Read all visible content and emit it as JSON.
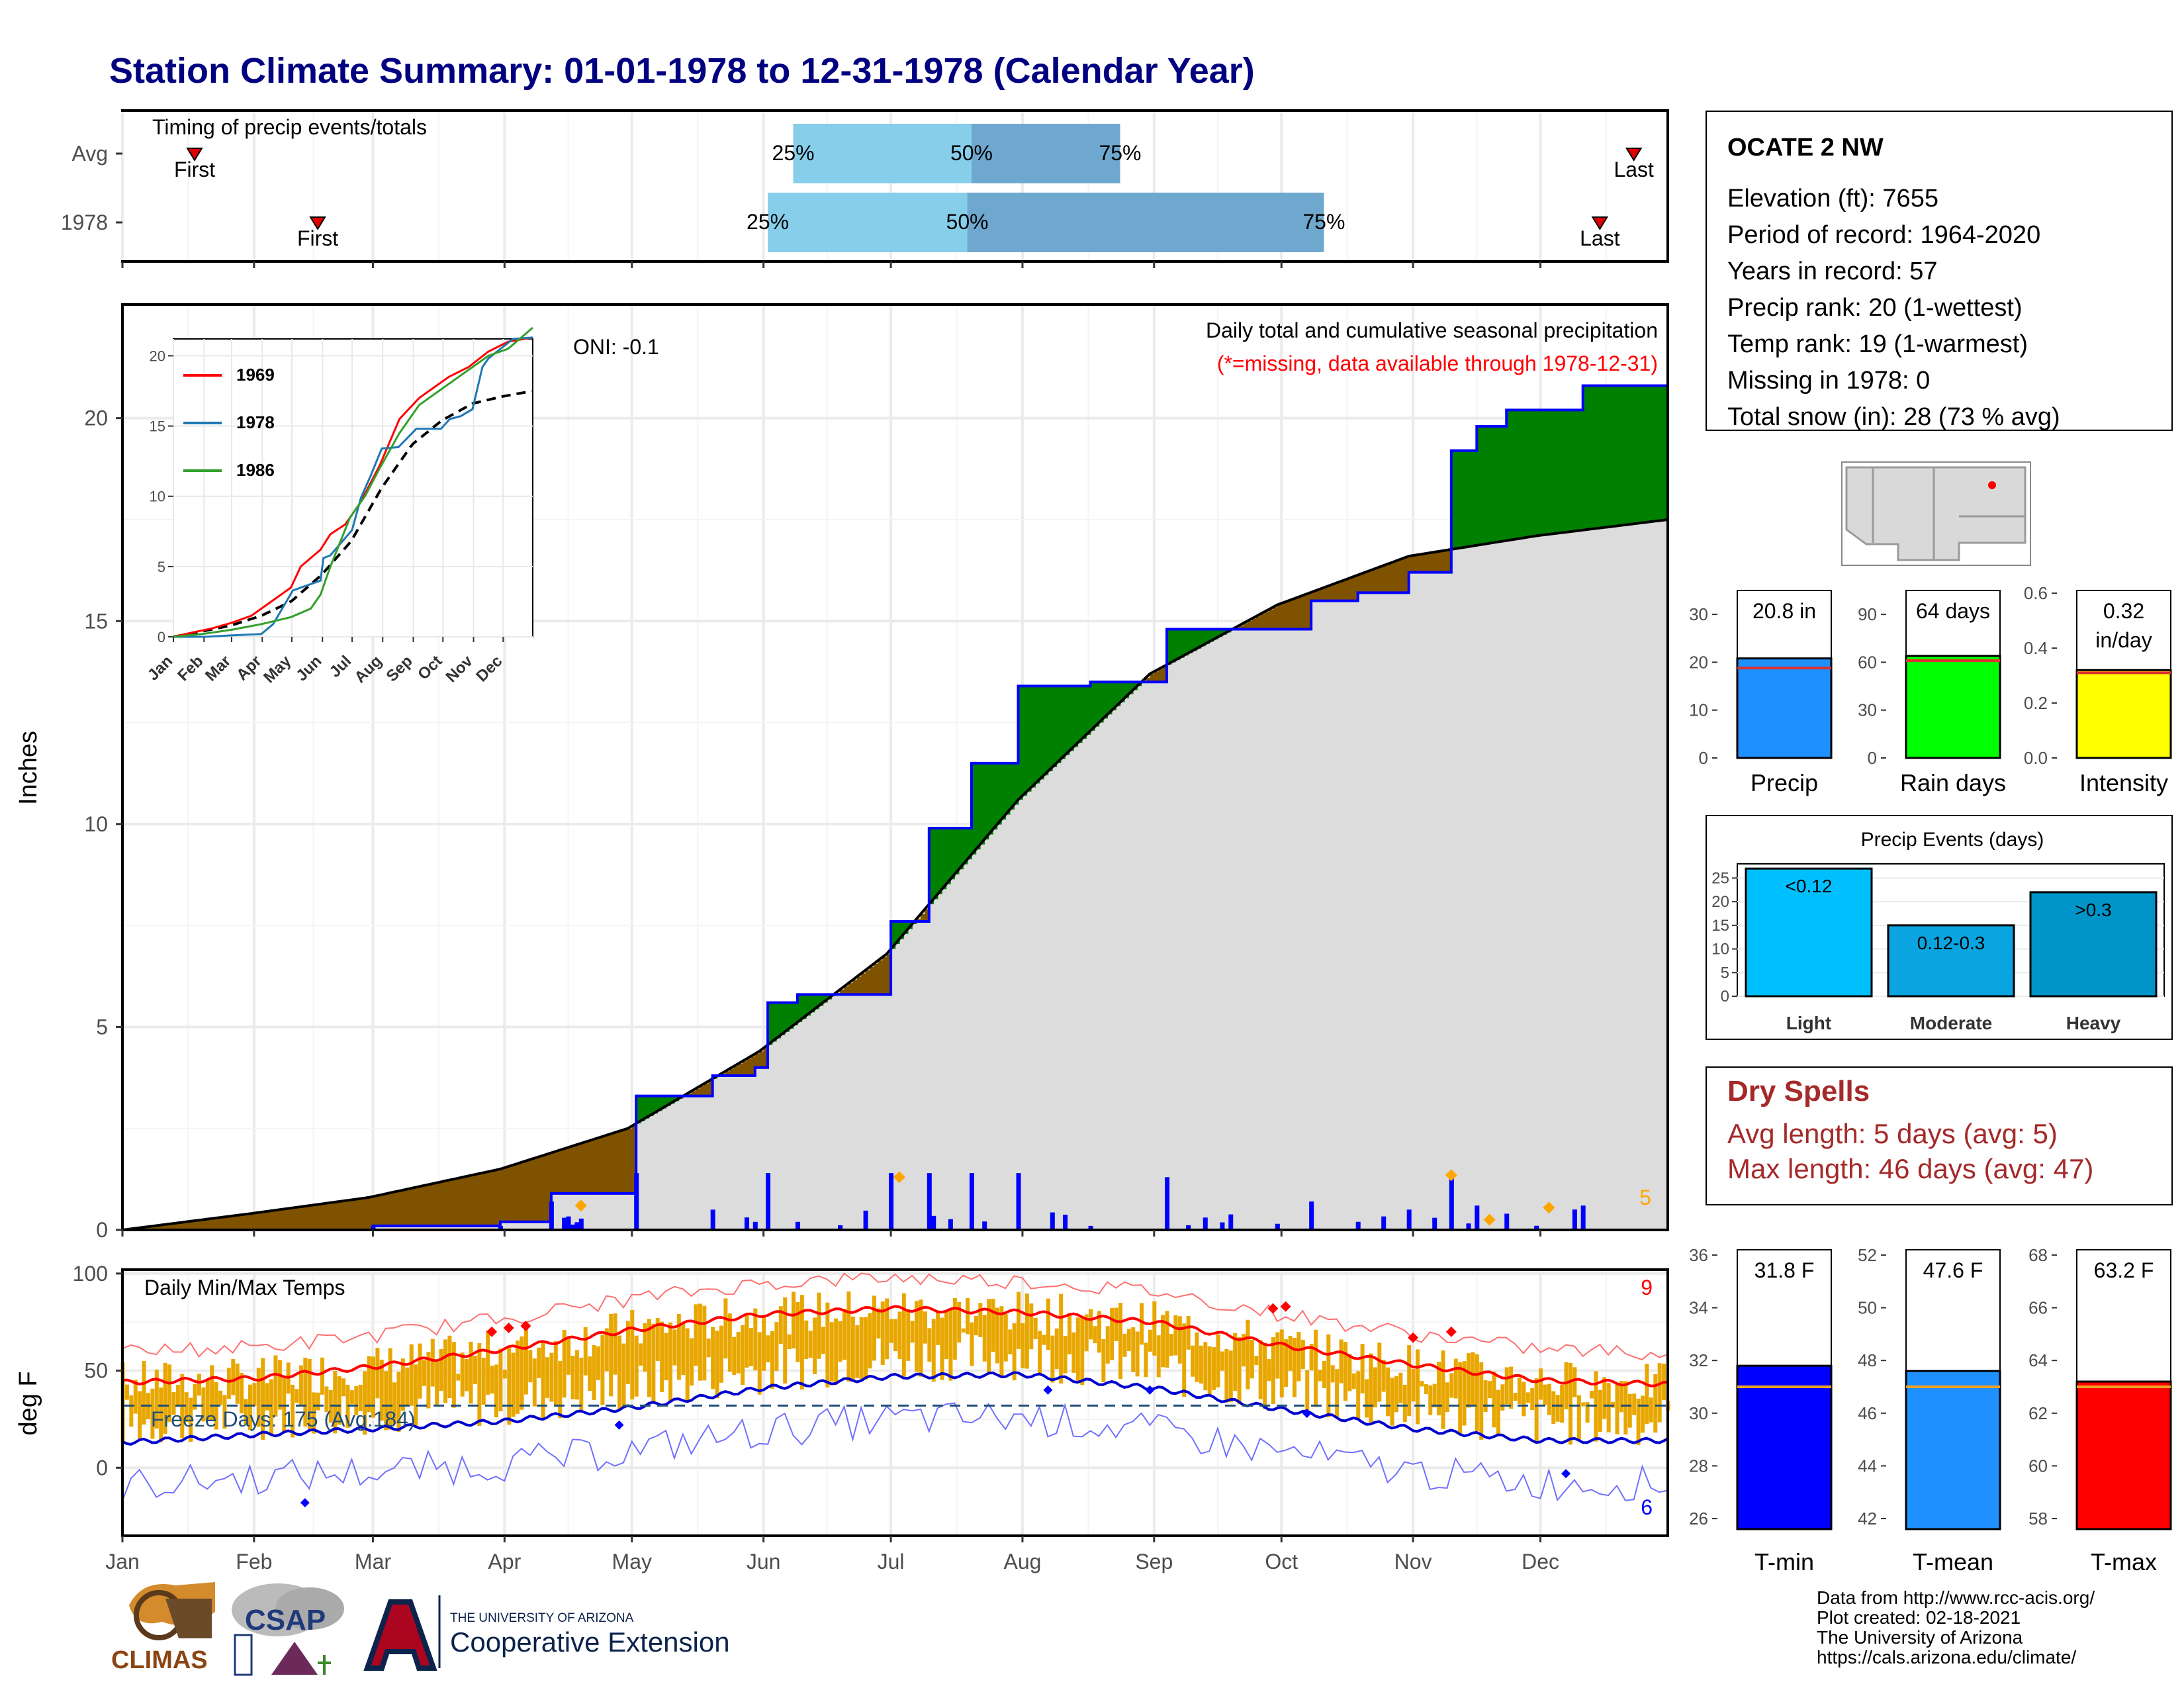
{
  "title": "Station Climate Summary: 01-01-1978 to 12-31-1978 (Calendar Year)",
  "colors": {
    "title": "#000080",
    "q1": "#87CEEB",
    "q2": "#6FA8CF",
    "cum_gray": "#DCDCDC",
    "above": "#008000",
    "below": "#7F5200",
    "daily_bar": "#0000FF",
    "tmax": "#FF0000",
    "tmin": "#0000CD",
    "temp_bar": "#E8A700",
    "precip_bar": "#1E90FF",
    "rain_bar": "#00FF00",
    "intensity_bar": "#FFFF00",
    "events_bar": "#00BFFF",
    "dry": "#A52A2A"
  },
  "timing": {
    "label": "Timing of precip events/totals",
    "rows": [
      {
        "name": "Avg",
        "first": "First",
        "last": "Last",
        "first_day": 18,
        "last_day": 357,
        "q25_day": 159,
        "q50_day": 201,
        "q75_day": 236,
        "q25": "25%",
        "q50": "50%",
        "q75": "75%"
      },
      {
        "name": "1978",
        "first": "First",
        "last": "Last",
        "first_day": 47,
        "last_day": 349,
        "q25_day": 153,
        "q50_day": 200,
        "q75_day": 284,
        "q25": "25%",
        "q50": "50%",
        "q75": "75%"
      }
    ]
  },
  "months": [
    "Jan",
    "Feb",
    "Mar",
    "Apr",
    "May",
    "Jun",
    "Jul",
    "Aug",
    "Sep",
    "Oct",
    "Nov",
    "Dec"
  ],
  "main": {
    "ylabel": "Inches",
    "annot_title": "Daily total and cumulative seasonal precipitation",
    "annot_missing": "(*=missing, data available through 1978-12-31)",
    "oni": "ONI: -0.1",
    "count": "5",
    "yticks": [
      "0",
      "5",
      "10",
      "15",
      "20"
    ]
  },
  "inset": {
    "series": [
      {
        "name": "1969",
        "color": "#FF0000"
      },
      {
        "name": "1978",
        "color": "#1F78B4"
      },
      {
        "name": "1986",
        "color": "#33A02C"
      }
    ],
    "yticks": [
      "0",
      "5",
      "10",
      "15",
      "20"
    ],
    "months": [
      "Jan",
      "Feb",
      "Mar",
      "Apr",
      "May",
      "Jun",
      "Jul",
      "Aug",
      "Sep",
      "Oct",
      "Nov",
      "Dec"
    ]
  },
  "temps": {
    "label": "Daily Min/Max Temps",
    "ylabel": "deg F",
    "freeze": "Freeze Days: 175 (Avg:184)",
    "count_hi": "9",
    "count_lo": "6",
    "yticks": [
      "0",
      "50",
      "100"
    ]
  },
  "station": {
    "name": "OCATE 2 NW",
    "lines": [
      "Elevation (ft): 7655",
      "Period of record: 1964-2020",
      "Years in record: 57",
      "Precip rank: 20 (1-wettest)",
      "Temp rank: 19 (1-warmest)",
      "Missing in 1978: 0",
      "Total snow (in): 28 (73 % avg)"
    ]
  },
  "summary_bars": [
    {
      "label": "Precip",
      "value_label": "20.8 in",
      "value": 20.8,
      "avg": 18.8,
      "ymax": 35,
      "ticks": [
        "0",
        "10",
        "20",
        "30"
      ],
      "tick_vals": [
        0,
        10,
        20,
        30
      ]
    },
    {
      "label": "Rain days",
      "value_label": "64 days",
      "value": 64,
      "avg": 61,
      "ymax": 105,
      "ticks": [
        "0",
        "30",
        "60",
        "90"
      ],
      "tick_vals": [
        0,
        30,
        60,
        90
      ]
    },
    {
      "label": "Intensity",
      "value_label": "0.32",
      "value_label2": "in/day",
      "value": 0.32,
      "avg": 0.31,
      "ymax": 0.61,
      "ticks": [
        "0.0",
        "0.2",
        "0.4",
        "0.6"
      ],
      "tick_vals": [
        0,
        0.2,
        0.4,
        0.6
      ]
    }
  ],
  "events": {
    "title": "Precip Events (days)",
    "categories": [
      "Light",
      "Moderate",
      "Heavy"
    ],
    "bar_labels": [
      "<0.12",
      "0.12-0.3",
      ">0.3"
    ],
    "values": [
      27,
      15,
      22
    ],
    "yticks": [
      "0",
      "5",
      "10",
      "15",
      "20",
      "25"
    ]
  },
  "dry": {
    "title": "Dry Spells",
    "avg": "Avg length: 5 days (avg: 5)",
    "max": "Max length: 46 days (avg: 47)"
  },
  "temp_bars": [
    {
      "label": "T-min",
      "value_label": "31.8 F",
      "value": 31.8,
      "avg": 31.0,
      "ymin": 25.6,
      "ymax": 36.2,
      "ticks": [
        "26",
        "28",
        "30",
        "32",
        "34",
        "36"
      ],
      "tick_vals": [
        26,
        28,
        30,
        32,
        34,
        36
      ]
    },
    {
      "label": "T-mean",
      "value_label": "47.6 F",
      "value": 47.6,
      "avg": 47.0,
      "ymin": 41.6,
      "ymax": 52.2,
      "ticks": [
        "42",
        "44",
        "46",
        "48",
        "50",
        "52"
      ],
      "tick_vals": [
        42,
        44,
        46,
        48,
        50,
        52
      ]
    },
    {
      "label": "T-max",
      "value_label": "63.2 F",
      "value": 63.2,
      "avg": 63.0,
      "ymin": 57.6,
      "ymax": 68.2,
      "ticks": [
        "58",
        "60",
        "62",
        "64",
        "66",
        "68"
      ],
      "tick_vals": [
        58,
        60,
        62,
        64,
        66,
        68
      ]
    }
  ],
  "footer": {
    "lines": [
      "Data from http://www.rcc-acis.org/",
      "Plot created: 02-18-2021",
      "The University of Arizona",
      "https://cals.arizona.edu/climate/"
    ],
    "univ": "THE UNIVERSITY OF ARIZONA",
    "coop": "Cooperative Extension",
    "climas": "CLIMAS",
    "csap": "CSAP"
  },
  "chart_data": [
    {
      "type": "area",
      "title": "Daily total and cumulative seasonal precipitation",
      "ylabel": "Inches",
      "ylim": [
        0,
        22.8
      ],
      "xlim_days": [
        1,
        365
      ],
      "series": [
        {
          "name": "Observed cumulative",
          "x": [
            1,
            33,
            60,
            90,
            102,
            118,
            122,
            140,
            150,
            153,
            160,
            175,
            182,
            191,
            201,
            212,
            229,
            247,
            272,
            281,
            292,
            304,
            314,
            320,
            327,
            345,
            365
          ],
          "values": [
            0,
            0,
            0.1,
            0.2,
            0.9,
            0.9,
            3.3,
            3.8,
            4,
            5.6,
            5.8,
            5.8,
            7.6,
            9.9,
            11.5,
            13.4,
            13.5,
            14.8,
            14.8,
            15.5,
            15.7,
            16.2,
            19.2,
            19.8,
            20.2,
            20.8,
            20.8
          ]
        },
        {
          "name": "Average cumulative",
          "x": [
            1,
            31,
            59,
            90,
            120,
            151,
            181,
            212,
            243,
            273,
            304,
            334,
            365
          ],
          "values": [
            0,
            0.4,
            0.8,
            1.5,
            2.5,
            4.4,
            6.8,
            10.6,
            13.7,
            15.4,
            16.6,
            17.1,
            17.5
          ]
        }
      ]
    },
    {
      "type": "line",
      "title": "Daily Min/Max Temps",
      "ylabel": "deg F",
      "ylim": [
        -35,
        102
      ],
      "series": [
        {
          "name": "Avg max",
          "x": [
            1,
            32,
            60,
            91,
            121,
            152,
            182,
            213,
            244,
            274,
            305,
            335,
            365
          ],
          "values": [
            44,
            46,
            52,
            61,
            71,
            79,
            82,
            80,
            75,
            63,
            53,
            45,
            43
          ]
        },
        {
          "name": "Avg min",
          "x": [
            1,
            32,
            60,
            91,
            121,
            152,
            182,
            213,
            244,
            274,
            305,
            335,
            365
          ],
          "values": [
            13,
            17,
            20,
            24,
            31,
            41,
            47,
            48,
            41,
            30,
            20,
            14,
            14
          ]
        }
      ]
    },
    {
      "type": "bar",
      "title": "Precip Events (days)",
      "categories": [
        "Light",
        "Moderate",
        "Heavy"
      ],
      "values": [
        27,
        15,
        22
      ]
    }
  ]
}
